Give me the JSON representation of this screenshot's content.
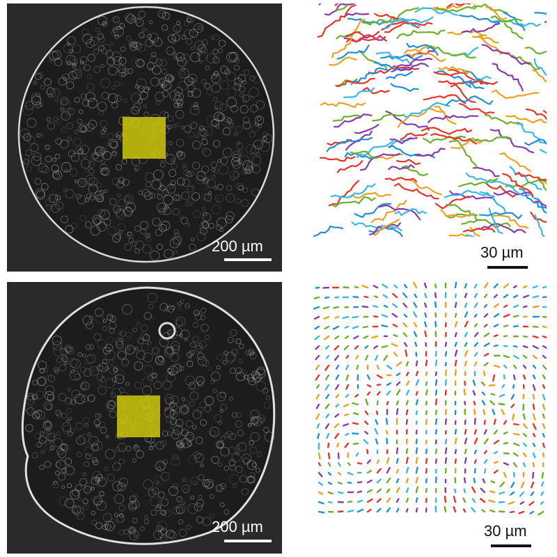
{
  "panels": [
    {
      "id": "top",
      "micrograph_scale_label": "200 µm",
      "tracks_scale_label": "30 µm",
      "tracks_pattern": "flowing"
    },
    {
      "id": "bottom",
      "micrograph_scale_label": "200 µm",
      "tracks_scale_label": "30 µm",
      "tracks_pattern": "swirling"
    }
  ],
  "colors": {
    "micrograph_background": "#2a2a2a",
    "cell_outline": "#e8e8e8",
    "roi_highlight": "#ccc80a",
    "track_palette": [
      "#1e90d8",
      "#e8322a",
      "#f0a020",
      "#6ab02a",
      "#8a3aa8",
      "#3ab8e8"
    ]
  }
}
